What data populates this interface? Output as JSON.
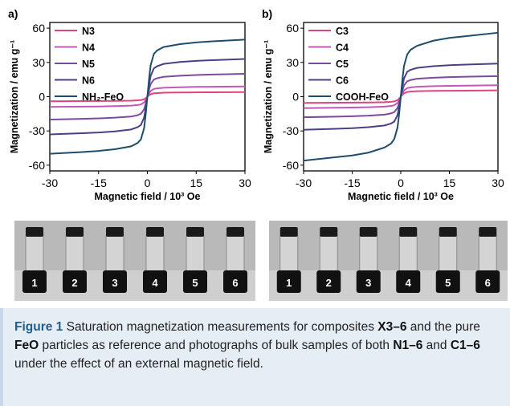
{
  "chart_data": [
    {
      "type": "line",
      "panel_label": "a)",
      "ylabel": "Magnetization / emu g⁻¹",
      "xlabel": "Magnetic field / 10³ Oe",
      "x": [
        -30,
        -20,
        -15,
        -10,
        -5,
        -3,
        -2,
        -1,
        -0.5,
        0,
        0.5,
        1,
        2,
        3,
        5,
        10,
        15,
        20,
        30
      ],
      "series": [
        {
          "name": "N3",
          "color": "#e0447c",
          "values": [
            -4,
            -3.9,
            -3.8,
            -3.7,
            -3.5,
            -3.2,
            -3,
            -2.2,
            -1.2,
            0,
            1.2,
            2.2,
            3,
            3.2,
            3.5,
            3.7,
            3.8,
            3.9,
            4
          ]
        },
        {
          "name": "N4",
          "color": "#c258b8",
          "values": [
            -9,
            -8.7,
            -8.6,
            -8.3,
            -7.8,
            -7.3,
            -6.8,
            -5,
            -2.7,
            0,
            2.7,
            5,
            6.8,
            7.3,
            7.8,
            8.3,
            8.6,
            8.7,
            9
          ]
        },
        {
          "name": "N5",
          "color": "#7e4a9e",
          "values": [
            -20,
            -19.4,
            -19,
            -18.4,
            -17.4,
            -16.2,
            -15,
            -11,
            -6,
            0,
            6,
            11,
            15,
            16.2,
            17.4,
            18.4,
            19,
            19.4,
            20
          ]
        },
        {
          "name": "N6",
          "color": "#4b3f86",
          "values": [
            -33,
            -32,
            -31.4,
            -30.4,
            -28.7,
            -26.7,
            -24.8,
            -18.2,
            -9.9,
            0,
            9.9,
            18.2,
            24.8,
            26.7,
            28.7,
            30.4,
            31.4,
            32,
            33
          ]
        },
        {
          "name": "NH₂-FeO",
          "color": "#1e4d6b",
          "values": [
            -50,
            -48.5,
            -47.5,
            -46,
            -43.5,
            -40.5,
            -37.5,
            -27.5,
            -15,
            0,
            15,
            27.5,
            37.5,
            40.5,
            43.5,
            46,
            47.5,
            48.5,
            50
          ]
        }
      ],
      "xlim": [
        -30,
        30
      ],
      "xticks": [
        -30,
        -15,
        0,
        15,
        30
      ],
      "ylim": [
        -65,
        65
      ],
      "yticks": [
        -60,
        -30,
        0,
        30,
        60
      ],
      "legend": "upper left"
    },
    {
      "type": "line",
      "panel_label": "b)",
      "ylabel": "Magnetization / emu g⁻¹",
      "xlabel": "Magnetic field / 10³ Oe",
      "x": [
        -30,
        -20,
        -15,
        -10,
        -5,
        -3,
        -2,
        -1,
        -0.5,
        0,
        0.5,
        1,
        2,
        3,
        5,
        10,
        15,
        20,
        30
      ],
      "series": [
        {
          "name": "C3",
          "color": "#e0447c",
          "values": [
            -5.5,
            -5.3,
            -5.2,
            -5.1,
            -4.8,
            -4.5,
            -4.1,
            -3,
            -1.7,
            0,
            1.7,
            3,
            4.1,
            4.5,
            4.8,
            5.1,
            5.2,
            5.3,
            5.5
          ]
        },
        {
          "name": "C4",
          "color": "#c258b8",
          "values": [
            -10,
            -9.7,
            -9.5,
            -9.2,
            -8.7,
            -8.1,
            -7.5,
            -5.5,
            -3,
            0,
            3,
            5.5,
            7.5,
            8.1,
            8.7,
            9.2,
            9.5,
            9.7,
            10
          ]
        },
        {
          "name": "C5",
          "color": "#7e4a9e",
          "values": [
            -18,
            -17.5,
            -17.1,
            -16.6,
            -15.7,
            -14.6,
            -13.5,
            -9.9,
            -5.4,
            0,
            5.4,
            9.9,
            13.5,
            14.6,
            15.7,
            16.6,
            17.1,
            17.5,
            18
          ]
        },
        {
          "name": "C6",
          "color": "#4b3f86",
          "values": [
            -29,
            -28.1,
            -27.6,
            -26.7,
            -25.2,
            -23.5,
            -21.8,
            -16,
            -8.7,
            0,
            8.7,
            16,
            21.8,
            23.5,
            25.2,
            26.7,
            27.6,
            28.1,
            29
          ]
        },
        {
          "name": "COOH-FeO",
          "color": "#1e4d6b",
          "values": [
            -56,
            -53,
            -51.5,
            -49,
            -44.5,
            -41,
            -37,
            -27,
            -15,
            0,
            15,
            27,
            37,
            41,
            44.5,
            49,
            51.5,
            53,
            56
          ]
        }
      ],
      "xlim": [
        -30,
        30
      ],
      "xticks": [
        -30,
        -15,
        0,
        15,
        30
      ],
      "ylim": [
        -65,
        65
      ],
      "yticks": [
        -60,
        -30,
        0,
        30,
        60
      ],
      "legend": "upper left"
    }
  ],
  "photos": [
    {
      "labels": [
        "1",
        "2",
        "3",
        "4",
        "5",
        "6"
      ]
    },
    {
      "labels": [
        "1",
        "2",
        "3",
        "4",
        "5",
        "6"
      ]
    }
  ],
  "caption": [
    {
      "text": "Figure 1",
      "bold": true
    },
    {
      "text": " Saturation magnetization measurements for composites ",
      "bold": false
    },
    {
      "text": "X3–6",
      "bold": true
    },
    {
      "text": " and the pure ",
      "bold": false
    },
    {
      "text": "FeO",
      "bold": true
    },
    {
      "text": " particles as reference and photographs of bulk samples of both ",
      "bold": false
    },
    {
      "text": "N1–6",
      "bold": true
    },
    {
      "text": " and ",
      "bold": false
    },
    {
      "text": "C1–6",
      "bold": true
    },
    {
      "text": " under the effect of an external magnetic field.",
      "bold": false
    }
  ]
}
